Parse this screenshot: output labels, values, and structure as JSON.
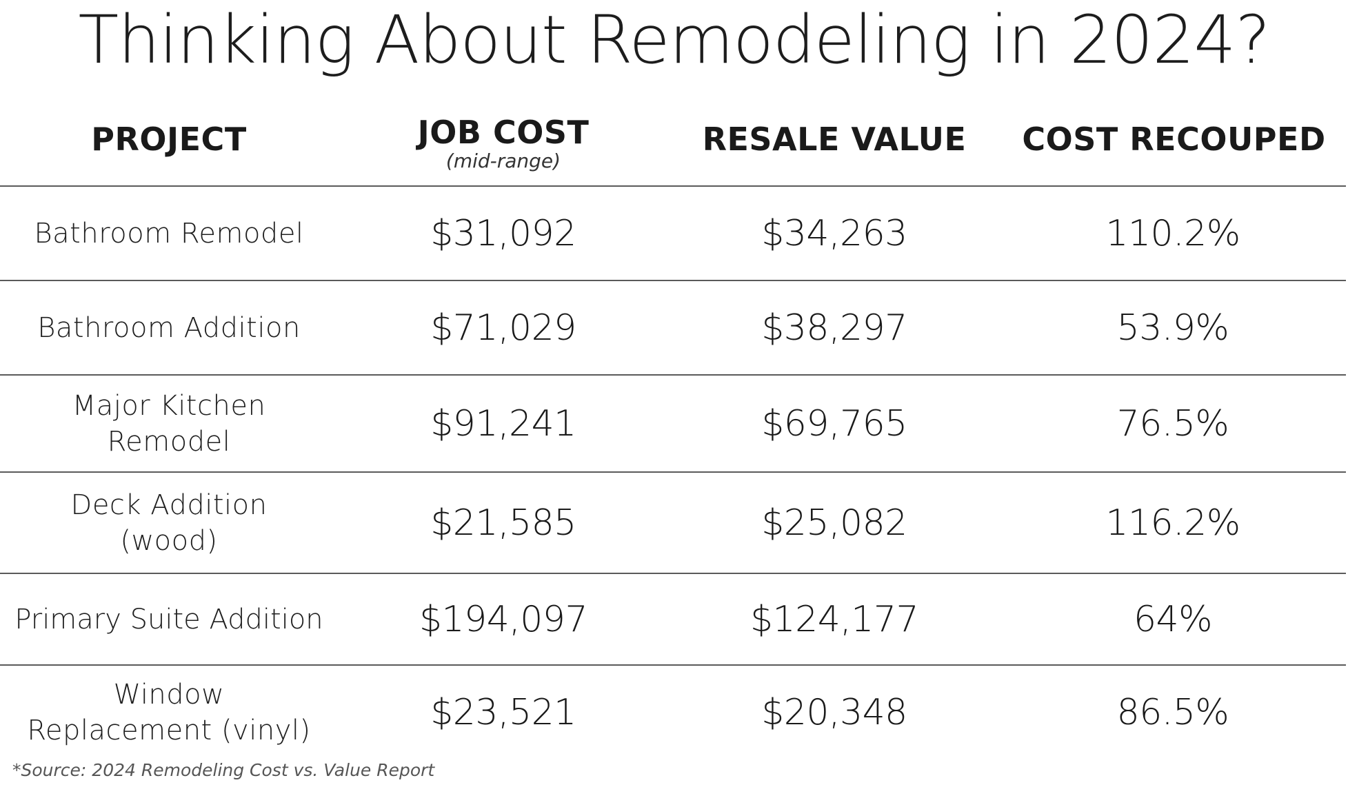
{
  "title": "Thinking About Remodeling in 2024?",
  "table": {
    "headers": {
      "project": "PROJECT",
      "job_cost": "JOB COST",
      "job_cost_sub": "(mid-range)",
      "resale_value": "RESALE VALUE",
      "cost_recouped": "COST RECOUPED"
    },
    "rows": [
      {
        "project": "Bathroom Remodel",
        "job_cost": "$31,092",
        "resale_value": "$34,263",
        "cost_recouped": "110.2%"
      },
      {
        "project": "Bathroom Addition",
        "job_cost": "$71,029",
        "resale_value": "$38,297",
        "cost_recouped": "53.9%"
      },
      {
        "project": "Major Kitchen Remodel",
        "job_cost": "$91,241",
        "resale_value": "$69,765",
        "cost_recouped": "76.5%"
      },
      {
        "project": "Deck Addition (wood)",
        "job_cost": "$21,585",
        "resale_value": "$25,082",
        "cost_recouped": "116.2%"
      },
      {
        "project": "Primary Suite Addition",
        "job_cost": "$194,097",
        "resale_value": "$124,177",
        "cost_recouped": "64%"
      },
      {
        "project": "Window Replacement (vinyl)",
        "job_cost": "$23,521",
        "resale_value": "$20,348",
        "cost_recouped": "86.5%"
      }
    ]
  },
  "footnote": "*Source: 2024 Remodeling Cost vs. Value Report"
}
